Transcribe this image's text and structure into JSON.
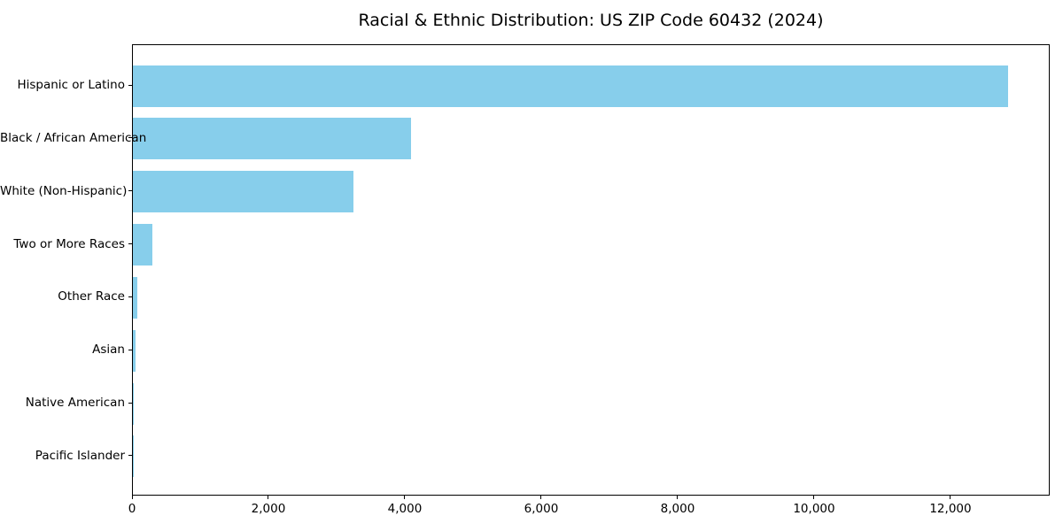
{
  "chart_data": {
    "type": "bar",
    "orientation": "horizontal",
    "title": "Racial & Ethnic Distribution: US ZIP Code 60432 (2024)",
    "categories": [
      "Hispanic or Latino",
      "Black / African American",
      "White (Non-Hispanic)",
      "Two or More Races",
      "Other Race",
      "Asian",
      "Native American",
      "Pacific Islander"
    ],
    "values": [
      12830,
      4080,
      3230,
      285,
      65,
      40,
      12,
      2
    ],
    "xlabel": "",
    "ylabel": "",
    "xlim": [
      0,
      13455
    ],
    "xticks": [
      0,
      2000,
      4000,
      6000,
      8000,
      10000,
      12000
    ],
    "xtick_labels": [
      "0",
      "2,000",
      "4,000",
      "6,000",
      "8,000",
      "10,000",
      "12,000"
    ],
    "grid": false,
    "legend": null,
    "bar_color": "#87CEEB",
    "spine_color": "#000000",
    "text_color": "#000000",
    "background_color": "#ffffff"
  }
}
